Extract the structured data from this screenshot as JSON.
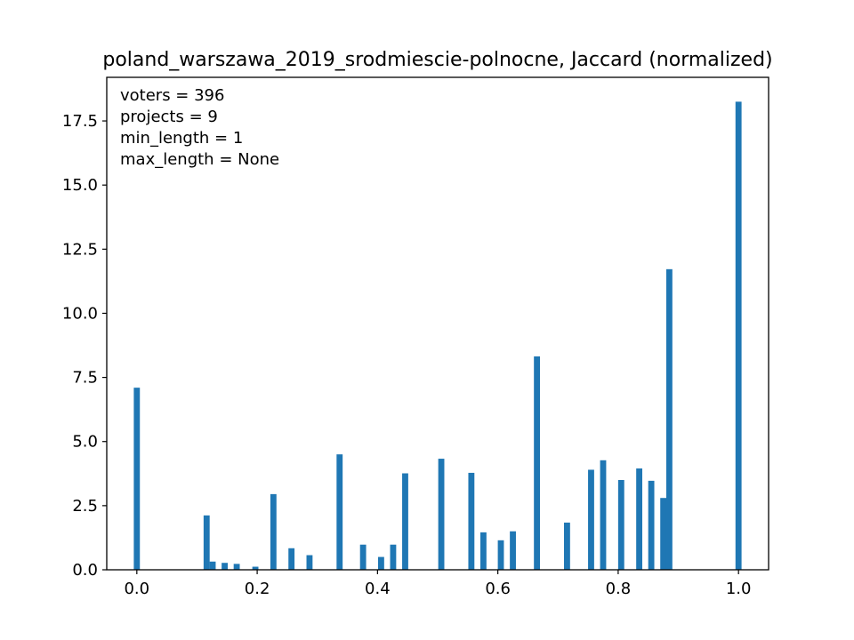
{
  "chart_data": {
    "type": "bar",
    "title": "poland_warszawa_2019_srodmiescie-polnocne, Jaccard (normalized)",
    "xlabel": "",
    "ylabel": "",
    "xlim": [
      -0.05,
      1.05
    ],
    "ylim": [
      0,
      19.2
    ],
    "grid": false,
    "bar_color": "#1f77b4",
    "bar_width": 0.0101,
    "xticks": [
      {
        "value": 0.0,
        "label": "0.0"
      },
      {
        "value": 0.2,
        "label": "0.2"
      },
      {
        "value": 0.4,
        "label": "0.4"
      },
      {
        "value": 0.6,
        "label": "0.6"
      },
      {
        "value": 0.8,
        "label": "0.8"
      },
      {
        "value": 1.0,
        "label": "1.0"
      }
    ],
    "yticks": [
      {
        "value": 0.0,
        "label": "0.0"
      },
      {
        "value": 2.5,
        "label": "2.5"
      },
      {
        "value": 5.0,
        "label": "5.0"
      },
      {
        "value": 7.5,
        "label": "7.5"
      },
      {
        "value": 10.0,
        "label": "10.0"
      },
      {
        "value": 12.5,
        "label": "12.5"
      },
      {
        "value": 15.0,
        "label": "15.0"
      },
      {
        "value": 17.5,
        "label": "17.5"
      }
    ],
    "annotations": [
      "voters = 396",
      "projects = 9",
      "min_length = 1",
      "max_length = None"
    ],
    "bars": [
      {
        "x": 0.0,
        "height": 7.1
      },
      {
        "x": 0.116,
        "height": 2.12
      },
      {
        "x": 0.126,
        "height": 0.32
      },
      {
        "x": 0.146,
        "height": 0.27
      },
      {
        "x": 0.166,
        "height": 0.23
      },
      {
        "x": 0.197,
        "height": 0.12
      },
      {
        "x": 0.227,
        "height": 2.95
      },
      {
        "x": 0.257,
        "height": 0.84
      },
      {
        "x": 0.287,
        "height": 0.57
      },
      {
        "x": 0.337,
        "height": 4.5
      },
      {
        "x": 0.376,
        "height": 0.98
      },
      {
        "x": 0.406,
        "height": 0.5
      },
      {
        "x": 0.426,
        "height": 0.98
      },
      {
        "x": 0.446,
        "height": 3.76
      },
      {
        "x": 0.506,
        "height": 4.33
      },
      {
        "x": 0.556,
        "height": 3.78
      },
      {
        "x": 0.576,
        "height": 1.46
      },
      {
        "x": 0.605,
        "height": 1.15
      },
      {
        "x": 0.625,
        "height": 1.5
      },
      {
        "x": 0.665,
        "height": 8.32
      },
      {
        "x": 0.715,
        "height": 1.84
      },
      {
        "x": 0.755,
        "height": 3.9
      },
      {
        "x": 0.775,
        "height": 4.27
      },
      {
        "x": 0.805,
        "height": 3.5
      },
      {
        "x": 0.835,
        "height": 3.95
      },
      {
        "x": 0.855,
        "height": 3.47
      },
      {
        "x": 0.875,
        "height": 2.8
      },
      {
        "x": 0.885,
        "height": 11.72
      },
      {
        "x": 1.0,
        "height": 18.25
      }
    ]
  }
}
